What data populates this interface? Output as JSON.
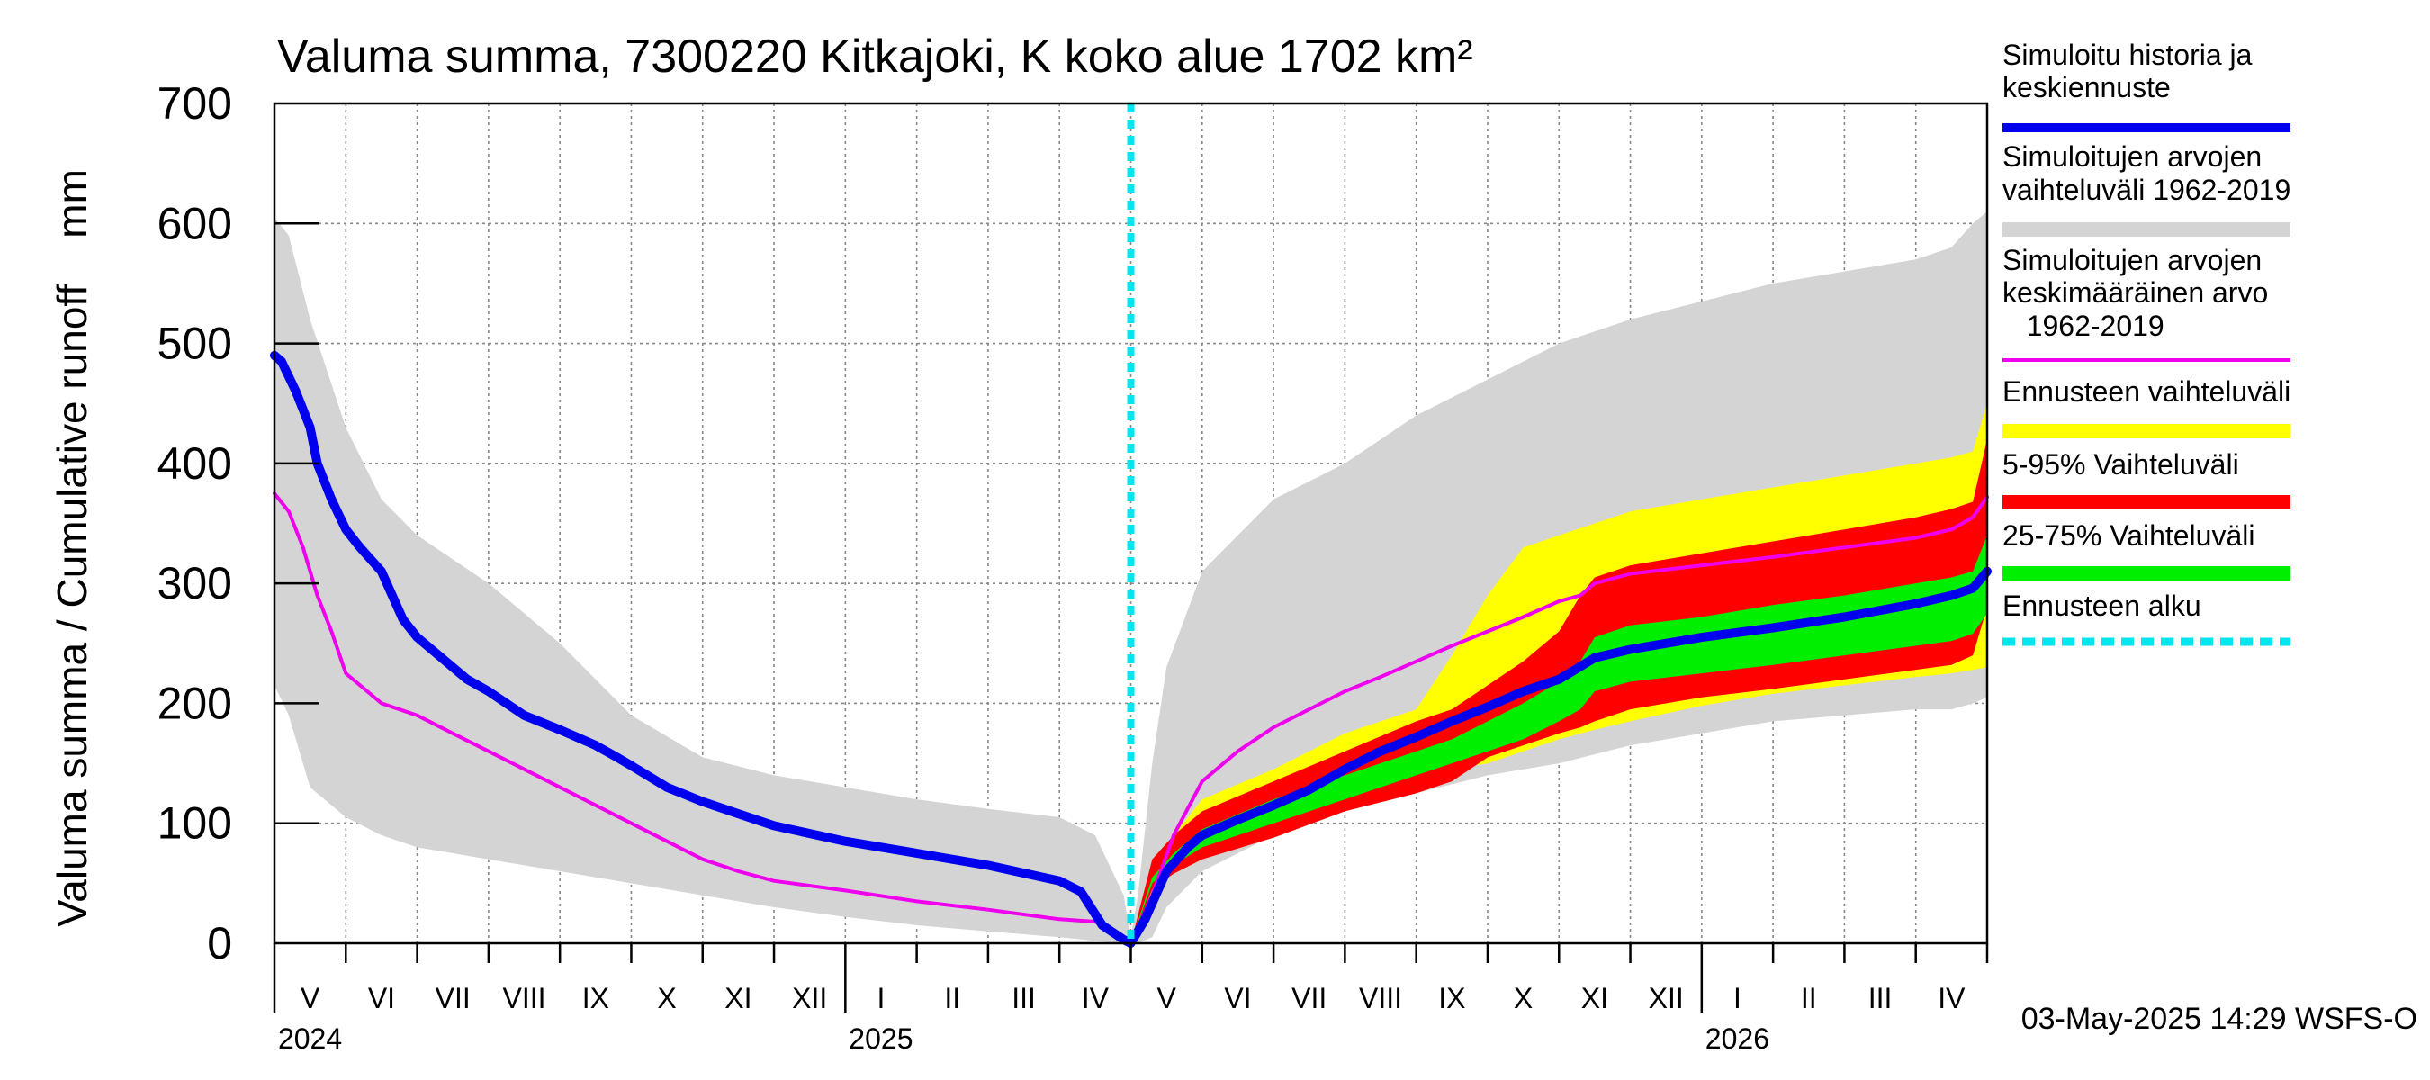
{
  "chart_data": {
    "type": "area",
    "title": "Valuma summa, 7300220 Kitkajoki, K koko alue 1702 km²",
    "ylabel": "Valuma summa / Cumulative runoff    mm",
    "ylim": [
      0,
      700
    ],
    "yticks": [
      "0",
      "100",
      "200",
      "300",
      "400",
      "500",
      "600",
      "700"
    ],
    "months": [
      "V",
      "VI",
      "VII",
      "VIII",
      "IX",
      "X",
      "XI",
      "XII",
      "I",
      "II",
      "III",
      "IV",
      "V",
      "VI",
      "VII",
      "VIII",
      "IX",
      "X",
      "XI",
      "XII",
      "I",
      "II",
      "III",
      "IV"
    ],
    "years": [
      "2024",
      "2025",
      "2026"
    ],
    "timestamp": "03-May-2025 14:29 WSFS-O",
    "forecast_start_month_index": 12,
    "x_unit": "months since 1 May 2024",
    "colors": {
      "history_range": "#d4d4d4",
      "forecast_range": "#ffff00",
      "p5_95": "#ff0000",
      "p25_75": "#00ee00",
      "simulated": "#0000ee",
      "mean": "#ee00ee",
      "forecast_start": "#00e5ee"
    },
    "legend": [
      {
        "label": "Simuloitu historia ja keskiennuste",
        "color": "#0000ee",
        "style": "line"
      },
      {
        "label": "Simuloitujen arvojen vaihteluväli 1962-2019",
        "color": "#d4d4d4",
        "style": "band"
      },
      {
        "label": "Simuloitujen arvojen keskimääräinen arvo 1962-2019",
        "color": "#ee00ee",
        "style": "thin"
      },
      {
        "label": "Ennusteen vaihteluväli",
        "color": "#ffff00",
        "style": "band"
      },
      {
        "label": "5-95% Vaihteluväli",
        "color": "#ff0000",
        "style": "band"
      },
      {
        "label": "25-75% Vaihteluväli",
        "color": "#00ee00",
        "style": "band"
      },
      {
        "label": "Ennusteen alku",
        "color": "#00e5ee",
        "style": "dashed"
      }
    ],
    "series": {
      "history_range": {
        "x": [
          0,
          0.2,
          0.5,
          1,
          1.5,
          2,
          3,
          4,
          5,
          6,
          7,
          8,
          9,
          10,
          11,
          11.5,
          11.9,
          12,
          12.1,
          12.3,
          12.5,
          13,
          14,
          15,
          16,
          17,
          18,
          19,
          20,
          21,
          22,
          23,
          23.5,
          23.8,
          24
        ],
        "upper": [
          605,
          590,
          520,
          430,
          370,
          340,
          300,
          250,
          190,
          155,
          140,
          130,
          120,
          112,
          105,
          90,
          40,
          5,
          40,
          150,
          230,
          310,
          370,
          400,
          440,
          470,
          500,
          520,
          535,
          550,
          560,
          570,
          580,
          600,
          610
        ],
        "lower": [
          215,
          190,
          130,
          105,
          90,
          80,
          70,
          60,
          50,
          40,
          30,
          22,
          15,
          10,
          5,
          2,
          0,
          0,
          0,
          5,
          30,
          60,
          90,
          110,
          125,
          140,
          150,
          165,
          175,
          185,
          190,
          195,
          195,
          200,
          205
        ]
      },
      "forecast_range": {
        "x": [
          12,
          12.3,
          12.6,
          13,
          14,
          15,
          16,
          16.5,
          17,
          17.5,
          18,
          18.5,
          19,
          20,
          21,
          22,
          23,
          23.5,
          23.8,
          24
        ],
        "upper": [
          0,
          50,
          90,
          120,
          145,
          175,
          195,
          240,
          290,
          330,
          340,
          350,
          360,
          370,
          380,
          390,
          400,
          405,
          410,
          450
        ],
        "lower": [
          0,
          45,
          60,
          75,
          90,
          120,
          140,
          145,
          150,
          160,
          170,
          178,
          185,
          198,
          208,
          215,
          222,
          225,
          228,
          230
        ]
      },
      "p5_95": {
        "x": [
          12,
          12.3,
          12.6,
          13,
          14,
          15,
          16,
          16.5,
          17,
          17.5,
          18,
          18.3,
          18.5,
          19,
          20,
          21,
          22,
          23,
          23.5,
          23.8,
          24
        ],
        "upper": [
          0,
          70,
          90,
          110,
          135,
          160,
          185,
          195,
          215,
          235,
          260,
          290,
          305,
          315,
          325,
          335,
          345,
          355,
          362,
          368,
          420
        ],
        "lower": [
          0,
          45,
          58,
          70,
          88,
          110,
          125,
          135,
          155,
          165,
          175,
          180,
          185,
          195,
          205,
          212,
          220,
          228,
          232,
          240,
          280
        ]
      },
      "p25_75": {
        "x": [
          12,
          12.3,
          12.6,
          13,
          14,
          15,
          16,
          16.5,
          17,
          17.5,
          18,
          18.3,
          18.5,
          19,
          20,
          21,
          22,
          23,
          23.5,
          23.8,
          24
        ],
        "upper": [
          0,
          55,
          75,
          95,
          120,
          140,
          160,
          170,
          185,
          200,
          218,
          235,
          255,
          265,
          272,
          282,
          290,
          300,
          305,
          310,
          340
        ],
        "lower": [
          0,
          50,
          65,
          80,
          100,
          120,
          140,
          150,
          160,
          170,
          185,
          195,
          210,
          218,
          225,
          232,
          240,
          248,
          252,
          258,
          275
        ]
      },
      "simulated": {
        "x": [
          0,
          0.1,
          0.3,
          0.5,
          0.6,
          0.8,
          1,
          1.2,
          1.5,
          1.8,
          2,
          2.3,
          2.7,
          3,
          3.5,
          4,
          4.5,
          4.8,
          5,
          5.5,
          6,
          6.5,
          7,
          8,
          9,
          10,
          11,
          11.3,
          11.6,
          11.9,
          12,
          12.2,
          12.5,
          12.8,
          13,
          13.5,
          14,
          14.5,
          15,
          15.5,
          16,
          16.5,
          17,
          17.5,
          18,
          18.5,
          19,
          20,
          21,
          22,
          23,
          23.5,
          23.8,
          24
        ],
        "values": [
          490,
          485,
          460,
          430,
          400,
          370,
          345,
          330,
          310,
          270,
          255,
          240,
          220,
          210,
          190,
          178,
          165,
          155,
          148,
          130,
          118,
          108,
          98,
          85,
          75,
          65,
          52,
          43,
          15,
          3,
          0,
          20,
          60,
          80,
          90,
          103,
          115,
          128,
          145,
          160,
          172,
          185,
          197,
          210,
          220,
          238,
          245,
          255,
          263,
          272,
          283,
          290,
          296,
          310
        ]
      },
      "mean": {
        "x": [
          0,
          0.2,
          0.4,
          0.6,
          0.8,
          1,
          1.5,
          2,
          2.5,
          3,
          3.5,
          4,
          4.5,
          5,
          5.5,
          6,
          6.5,
          7,
          8,
          9,
          10,
          11,
          11.5,
          11.9,
          12,
          12.3,
          12.6,
          13,
          13.5,
          14,
          14.5,
          15,
          15.5,
          16,
          16.5,
          17,
          17.5,
          18,
          18.3,
          18.5,
          19,
          20,
          21,
          22,
          23,
          23.5,
          23.8,
          24
        ],
        "values": [
          375,
          360,
          330,
          290,
          260,
          225,
          200,
          190,
          175,
          160,
          145,
          130,
          115,
          100,
          85,
          70,
          60,
          52,
          44,
          35,
          28,
          20,
          18,
          5,
          0,
          40,
          90,
          135,
          160,
          180,
          195,
          210,
          222,
          235,
          248,
          260,
          272,
          285,
          290,
          300,
          308,
          315,
          322,
          330,
          338,
          345,
          355,
          372
        ]
      }
    }
  }
}
